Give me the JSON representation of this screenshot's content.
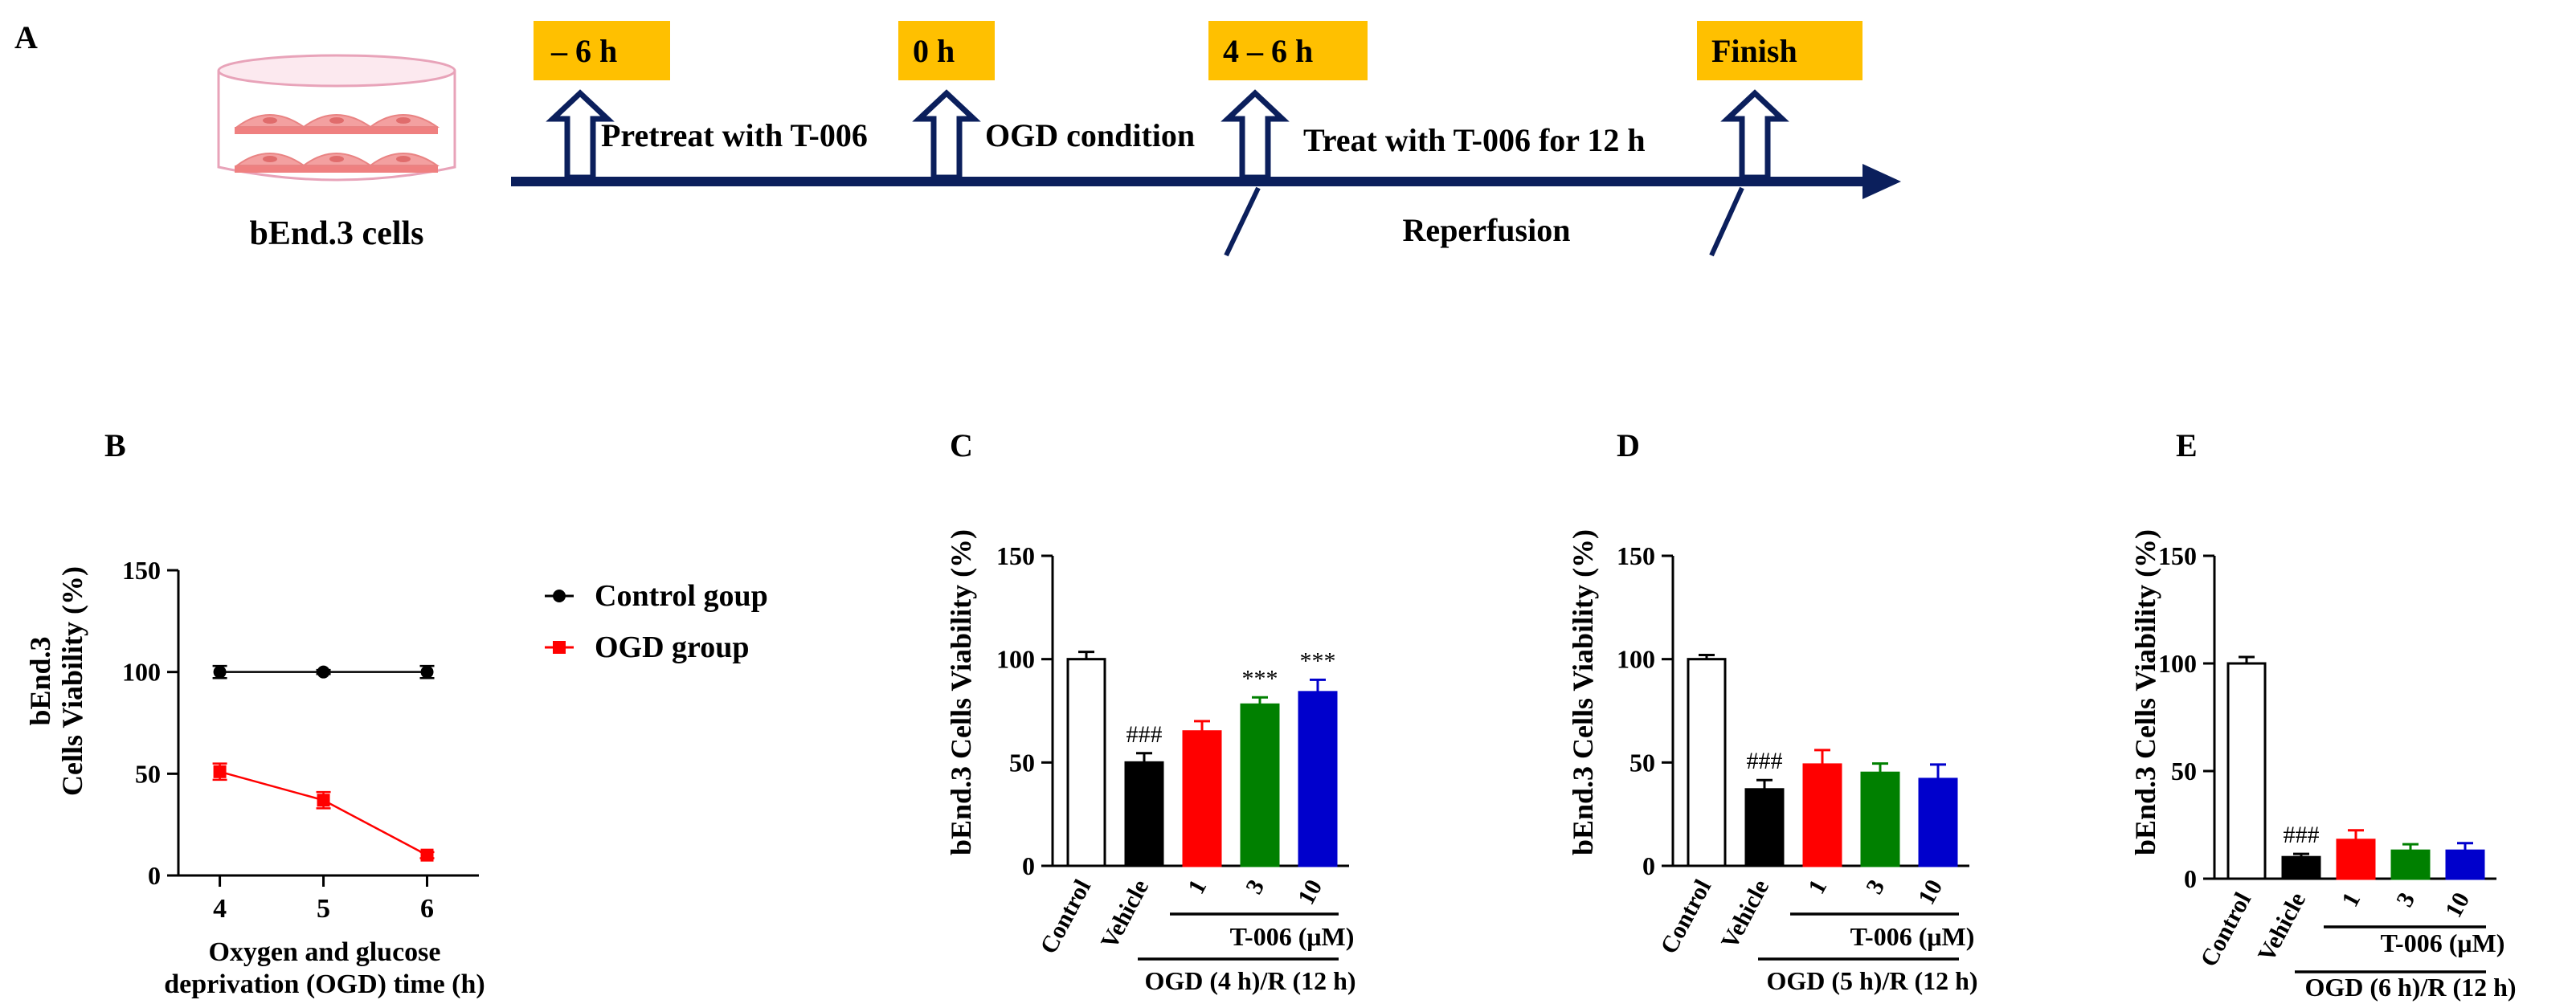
{
  "panel_a": {
    "letter": "A",
    "cell_label": "bEnd.3 cells",
    "badges": [
      "– 6 h",
      "0 h",
      "4 – 6 h",
      "Finish"
    ],
    "steps": [
      "Pretreat with T-006",
      "OGD condition",
      "Treat with T-006 for 12 h"
    ],
    "reperfusion": "Reperfusion",
    "colors": {
      "badge": "#FFC000",
      "timeline": "#0B1F5C",
      "dish": "#E8A3B9",
      "cell": "#EF8080"
    }
  },
  "chart_data": [
    {
      "panel": "B",
      "type": "line",
      "title": "",
      "xlabel_lines": [
        "Oxygen and glucose",
        "deprivation (OGD) time (h)"
      ],
      "ylabel_lines": [
        "bEnd.3",
        "Cells Viability (%)"
      ],
      "x": [
        4,
        5,
        6
      ],
      "ylim": [
        0,
        150
      ],
      "yticks": [
        0,
        50,
        100,
        150
      ],
      "series": [
        {
          "name": "Control goup",
          "values": [
            100,
            100,
            100
          ],
          "errors": [
            3,
            1,
            3
          ],
          "color": "#000000",
          "marker": "circle"
        },
        {
          "name": "OGD group",
          "values": [
            51,
            37,
            10
          ],
          "errors": [
            4,
            4,
            1.5
          ],
          "color": "#FF0000",
          "marker": "square"
        }
      ],
      "legend": "right"
    },
    {
      "panel": "C",
      "type": "bar",
      "ylabel": "bEnd.3 Cells Viability (%)",
      "ylim": [
        0,
        150
      ],
      "yticks": [
        0,
        50,
        100,
        150
      ],
      "categories": [
        "Control",
        "Vehicle",
        "1",
        "3",
        "10"
      ],
      "values": [
        100,
        50,
        65,
        78,
        84
      ],
      "errors": [
        3.5,
        4.5,
        5,
        3.5,
        6
      ],
      "colors": [
        "#FFFFFF",
        "#000000",
        "#FF0000",
        "#008000",
        "#0000CC"
      ],
      "annotations": [
        "",
        "###",
        "",
        "***",
        "***"
      ],
      "treatment_label": "T-006 (μM)",
      "condition_label": "OGD (4 h)/R (12 h)"
    },
    {
      "panel": "D",
      "type": "bar",
      "ylabel": "bEnd.3 Cells Viability (%)",
      "ylim": [
        0,
        150
      ],
      "yticks": [
        0,
        50,
        100,
        150
      ],
      "categories": [
        "Control",
        "Vehicle",
        "1",
        "3",
        "10"
      ],
      "values": [
        100,
        37,
        49,
        45,
        42
      ],
      "errors": [
        2,
        4.5,
        7,
        4.5,
        7
      ],
      "colors": [
        "#FFFFFF",
        "#000000",
        "#FF0000",
        "#008000",
        "#0000CC"
      ],
      "annotations": [
        "",
        "###",
        "",
        "",
        ""
      ],
      "treatment_label": "T-006 (μM)",
      "condition_label": "OGD (5 h)/R (12 h)"
    },
    {
      "panel": "E",
      "type": "bar",
      "ylabel": "bEnd.3 Cells Viability (%)",
      "ylim": [
        0,
        150
      ],
      "yticks": [
        0,
        50,
        100,
        150
      ],
      "categories": [
        "Control",
        "Vehicle",
        "1",
        "3",
        "10"
      ],
      "values": [
        100,
        10,
        18,
        13,
        13
      ],
      "errors": [
        3,
        1.5,
        4.5,
        3,
        3.5
      ],
      "colors": [
        "#FFFFFF",
        "#000000",
        "#FF0000",
        "#008000",
        "#0000CC"
      ],
      "annotations": [
        "",
        "###",
        "",
        "",
        ""
      ],
      "treatment_label": "T-006 (μM)",
      "condition_label": "OGD (6 h)/R (12 h)"
    }
  ]
}
